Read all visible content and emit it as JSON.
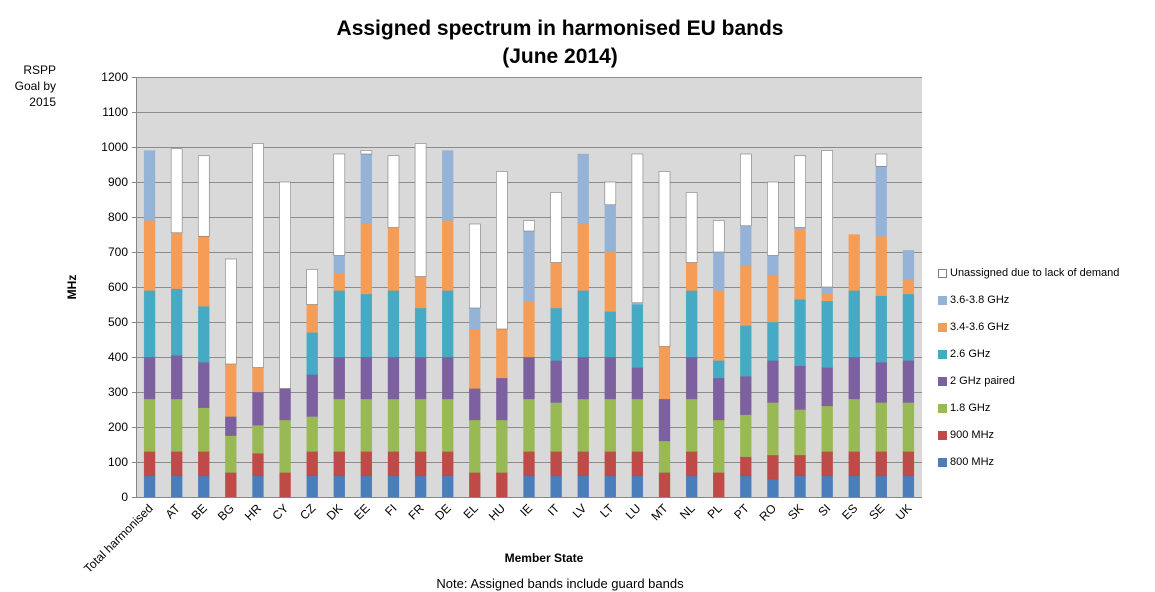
{
  "title_line1": "Assigned spectrum in harmonised EU bands",
  "title_line2": "(June 2014)",
  "goal_label": "RSPP Goal by 2015",
  "note": "Note: Assigned bands include guard bands",
  "chart_data": {
    "type": "bar",
    "stacked": true,
    "title": "Assigned spectrum in harmonised EU bands (June 2014)",
    "xlabel": "Member State",
    "ylabel": "MHz",
    "ylim": [
      0,
      1200
    ],
    "yticks": [
      0,
      100,
      200,
      300,
      400,
      500,
      600,
      700,
      800,
      900,
      1000,
      1100,
      1200
    ],
    "grid": true,
    "legend_position": "right",
    "categories": [
      "Total harmonised",
      "AT",
      "BE",
      "BG",
      "HR",
      "CY",
      "CZ",
      "DK",
      "EE",
      "FI",
      "FR",
      "DE",
      "EL",
      "HU",
      "IE",
      "IT",
      "LV",
      "LT",
      "LU",
      "MT",
      "NL",
      "PL",
      "PT",
      "RO",
      "SK",
      "SI",
      "ES",
      "SE",
      "UK"
    ],
    "series": [
      {
        "name": "800 MHz",
        "color": "#4a7ebb",
        "values": [
          60,
          60,
          60,
          0,
          60,
          0,
          60,
          60,
          60,
          60,
          60,
          60,
          0,
          0,
          60,
          60,
          60,
          60,
          60,
          0,
          60,
          0,
          60,
          50,
          60,
          60,
          60,
          60,
          60
        ]
      },
      {
        "name": "900 MHz",
        "color": "#be4b48",
        "values": [
          70,
          70,
          70,
          70,
          65,
          70,
          70,
          70,
          70,
          70,
          70,
          70,
          70,
          70,
          70,
          70,
          70,
          70,
          70,
          70,
          70,
          70,
          55,
          70,
          60,
          70,
          70,
          70,
          70
        ]
      },
      {
        "name": "1.8 GHz",
        "color": "#98b954",
        "values": [
          150,
          150,
          125,
          105,
          80,
          150,
          100,
          150,
          150,
          150,
          150,
          150,
          150,
          150,
          150,
          140,
          150,
          150,
          150,
          90,
          150,
          150,
          120,
          150,
          130,
          130,
          150,
          140,
          140
        ]
      },
      {
        "name": "2 GHz paired",
        "color": "#7d60a0",
        "values": [
          120,
          125,
          130,
          55,
          95,
          90,
          120,
          120,
          120,
          120,
          120,
          120,
          90,
          120,
          120,
          120,
          120,
          120,
          90,
          120,
          120,
          120,
          110,
          120,
          125,
          110,
          120,
          115,
          120
        ]
      },
      {
        "name": "2.6 GHz",
        "color": "#46aac5",
        "values": [
          190,
          190,
          160,
          0,
          0,
          0,
          120,
          190,
          180,
          190,
          140,
          190,
          0,
          0,
          0,
          150,
          190,
          130,
          180,
          0,
          190,
          50,
          145,
          110,
          190,
          190,
          190,
          190,
          190
        ]
      },
      {
        "name": "3.4-3.6 GHz",
        "color": "#f59d56",
        "values": [
          200,
          160,
          200,
          150,
          70,
          0,
          80,
          50,
          200,
          180,
          90,
          200,
          170,
          140,
          160,
          130,
          190,
          170,
          0,
          150,
          80,
          200,
          170,
          135,
          200,
          20,
          160,
          170,
          40
        ]
      },
      {
        "name": "3.6-3.8 GHz",
        "color": "#95b3d7",
        "values": [
          200,
          0,
          0,
          0,
          0,
          0,
          0,
          50,
          200,
          0,
          0,
          200,
          60,
          0,
          200,
          0,
          200,
          135,
          5,
          0,
          0,
          110,
          115,
          55,
          5,
          20,
          0,
          200,
          85
        ]
      },
      {
        "name": "Unassigned due to lack of demand",
        "color": "#ffffff",
        "values": [
          0,
          240,
          230,
          300,
          640,
          590,
          100,
          290,
          10,
          205,
          380,
          0,
          240,
          450,
          30,
          200,
          0,
          65,
          425,
          500,
          200,
          90,
          205,
          210,
          205,
          390,
          0,
          35,
          0
        ]
      }
    ]
  }
}
